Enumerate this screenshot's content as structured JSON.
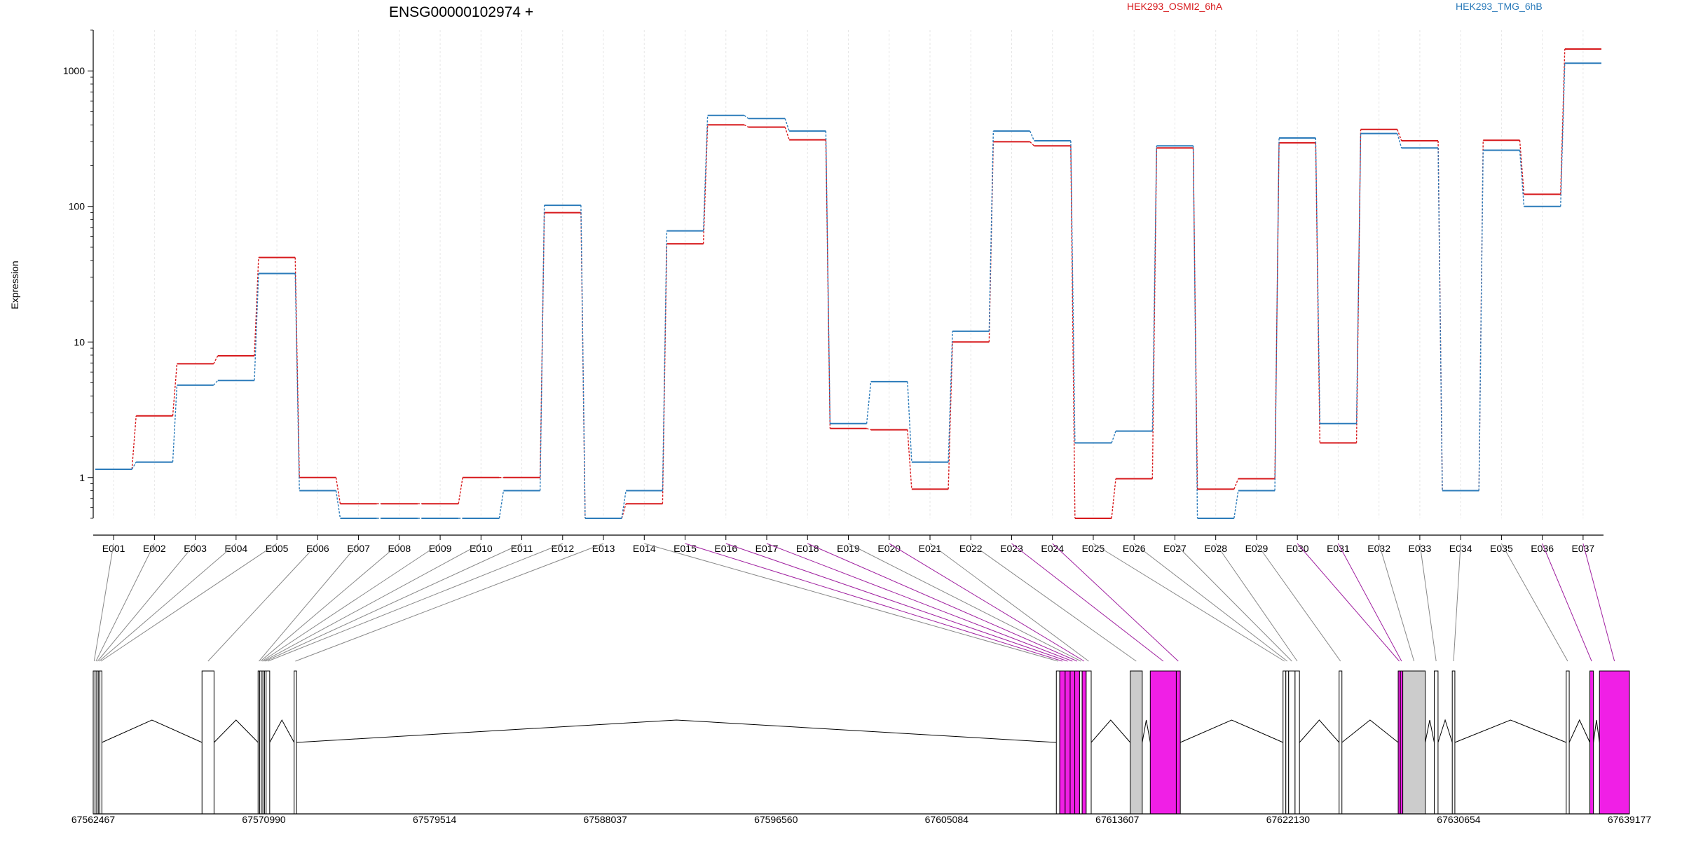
{
  "chart_data": {
    "type": "line",
    "title": "ENSG00000102974 +",
    "ylabel": "Expression",
    "xlabel": "",
    "y_scale": "log",
    "ylim": [
      0.5,
      2000
    ],
    "y_ticks": [
      1,
      10,
      100,
      1000
    ],
    "y_tick_labels": [
      "1",
      "10",
      "100",
      "1000"
    ],
    "grid": true,
    "legend_placement": "top",
    "categories": [
      "E001",
      "E002",
      "E003",
      "E004",
      "E005",
      "E006",
      "E007",
      "E008",
      "E009",
      "E010",
      "E011",
      "E012",
      "E013",
      "E014",
      "E015",
      "E016",
      "E017",
      "E018",
      "E019",
      "E020",
      "E021",
      "E022",
      "E023",
      "E024",
      "E025",
      "E026",
      "E027",
      "E028",
      "E029",
      "E030",
      "E031",
      "E032",
      "E033",
      "E034",
      "E035",
      "E036",
      "E037"
    ],
    "series": [
      {
        "name": "HEK293_OSMI2_6hA",
        "color": "#d7191c",
        "values": [
          1.15,
          2.85,
          6.9,
          7.9,
          42,
          1.0,
          0.64,
          0.64,
          0.64,
          1.0,
          1.0,
          90,
          0.5,
          0.64,
          53,
          400,
          385,
          310,
          2.3,
          2.25,
          0.82,
          10,
          300,
          280,
          0.5,
          0.98,
          270,
          0.82,
          0.98,
          295,
          1.8,
          370,
          305,
          0.8,
          308,
          123,
          1450
        ]
      },
      {
        "name": "HEK293_TMG_6hB",
        "color": "#2b7bba",
        "values": [
          1.15,
          1.3,
          4.8,
          5.2,
          32,
          0.8,
          0.5,
          0.5,
          0.5,
          0.5,
          0.8,
          102,
          0.5,
          0.8,
          66,
          470,
          445,
          360,
          2.5,
          5.1,
          1.3,
          12,
          360,
          305,
          1.8,
          2.2,
          280,
          0.5,
          0.8,
          320,
          2.5,
          345,
          270,
          0.8,
          260,
          100,
          1140
        ]
      }
    ],
    "genomic_axis": {
      "range": [
        67562467,
        67639177
      ],
      "tick_labels": [
        "67562467",
        "67570990",
        "67579514",
        "67588037",
        "67596560",
        "67605084",
        "67613607",
        "67622130",
        "67630654",
        "67639177"
      ]
    },
    "exons": [
      {
        "id": "E001",
        "start": 67562467,
        "end": 67562560,
        "sig": false
      },
      {
        "id": "E002",
        "start": 67562560,
        "end": 67562640,
        "sig": false
      },
      {
        "id": "E003",
        "start": 67562640,
        "end": 67562720,
        "sig": false
      },
      {
        "id": "E004",
        "start": 67562720,
        "end": 67562800,
        "sig": false
      },
      {
        "id": "E005",
        "start": 67562800,
        "end": 67562900,
        "sig": false
      },
      {
        "id": "E006",
        "start": 67567900,
        "end": 67568500,
        "sig": false
      },
      {
        "id": "E007",
        "start": 67570700,
        "end": 67570780,
        "sig": false
      },
      {
        "id": "E008",
        "start": 67570780,
        "end": 67570860,
        "sig": false
      },
      {
        "id": "E009",
        "start": 67570860,
        "end": 67570940,
        "sig": false
      },
      {
        "id": "E010",
        "start": 67570940,
        "end": 67571020,
        "sig": false
      },
      {
        "id": "E011",
        "start": 67571020,
        "end": 67571100,
        "sig": false
      },
      {
        "id": "E012",
        "start": 67571100,
        "end": 67571280,
        "sig": false
      },
      {
        "id": "E013",
        "start": 67572500,
        "end": 67572620,
        "sig": false
      },
      {
        "id": "E014",
        "start": 67610560,
        "end": 67610730,
        "sig": false
      },
      {
        "id": "E015",
        "start": 67610730,
        "end": 67611000,
        "sig": true
      },
      {
        "id": "E016",
        "start": 67611000,
        "end": 67611250,
        "sig": true
      },
      {
        "id": "E017",
        "start": 67611250,
        "end": 67611480,
        "sig": true
      },
      {
        "id": "E018",
        "start": 67611480,
        "end": 67611720,
        "sig": true
      },
      {
        "id": "E019",
        "start": 67611720,
        "end": 67611850,
        "sig": false
      },
      {
        "id": "E020",
        "start": 67611850,
        "end": 67612050,
        "sig": true
      },
      {
        "id": "E021",
        "start": 67612050,
        "end": 67612300,
        "sig": false
      },
      {
        "id": "E022",
        "start": 67614250,
        "end": 67614850,
        "sig": false
      },
      {
        "id": "E023",
        "start": 67615250,
        "end": 67616550,
        "sig": true
      },
      {
        "id": "E024",
        "start": 67616550,
        "end": 67616750,
        "sig": true
      },
      {
        "id": "E025",
        "start": 67621880,
        "end": 67622020,
        "sig": false
      },
      {
        "id": "E026",
        "start": 67622020,
        "end": 67622160,
        "sig": false
      },
      {
        "id": "E027",
        "start": 67622160,
        "end": 67622480,
        "sig": false
      },
      {
        "id": "E028",
        "start": 67622480,
        "end": 67622700,
        "sig": false
      },
      {
        "id": "E029",
        "start": 67624680,
        "end": 67624820,
        "sig": false
      },
      {
        "id": "E030",
        "start": 67627630,
        "end": 67627740,
        "sig": true
      },
      {
        "id": "E031",
        "start": 67627740,
        "end": 67627860,
        "sig": true
      },
      {
        "id": "E032",
        "start": 67627860,
        "end": 67628980,
        "sig": false
      },
      {
        "id": "E033",
        "start": 67629430,
        "end": 67629620,
        "sig": false
      },
      {
        "id": "E034",
        "start": 67630330,
        "end": 67630460,
        "sig": false
      },
      {
        "id": "E035",
        "start": 67636020,
        "end": 67636170,
        "sig": false
      },
      {
        "id": "E036",
        "start": 67637200,
        "end": 67637380,
        "sig": true
      },
      {
        "id": "E037",
        "start": 67637680,
        "end": 67639177,
        "sig": true
      }
    ]
  }
}
